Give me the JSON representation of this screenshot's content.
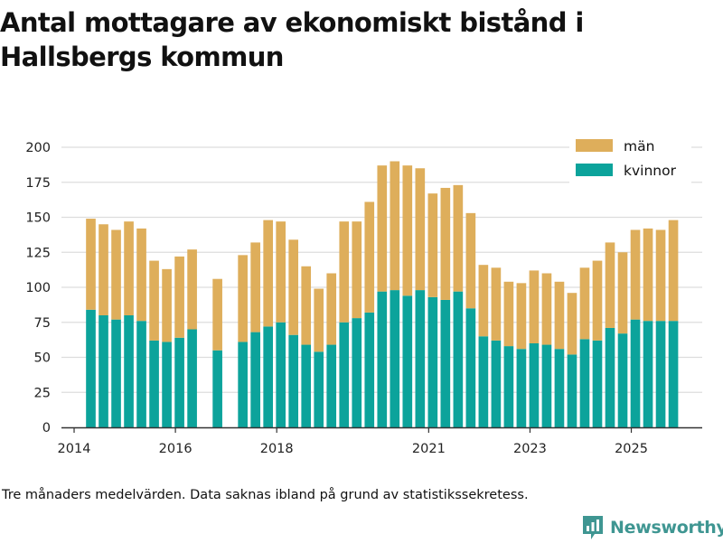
{
  "title": "Antal mottagare av ekonomiskt bistånd i Hallsbergs kommun",
  "footnote": "Tre månaders medelvärden. Data saknas ibland på grund av statistikssekretess.",
  "brand": "Newsworthy",
  "colors": {
    "men": "#deae5b",
    "women": "#0ca39b",
    "grid": "#dddddd",
    "axis": "#333333",
    "brand": "#3f9692"
  },
  "chart_data": {
    "type": "bar",
    "stacked": true,
    "title": "Antal mottagare av ekonomiskt bistånd i Hallsbergs kommun",
    "xlabel": "",
    "ylabel": "",
    "ylim": [
      0,
      200
    ],
    "yticks": [
      0,
      25,
      50,
      75,
      100,
      125,
      150,
      175,
      200
    ],
    "xlim": [
      2013.75,
      2026.4
    ],
    "xticks": [
      {
        "value": 2014.0,
        "label": "2014"
      },
      {
        "value": 2016.0,
        "label": "2016"
      },
      {
        "value": 2018.0,
        "label": "2018"
      },
      {
        "value": 2021.0,
        "label": "2021"
      },
      {
        "value": 2023.0,
        "label": "2023"
      },
      {
        "value": 2025.0,
        "label": "2025"
      }
    ],
    "legend": {
      "position": "top-right",
      "entries": [
        "män",
        "kvinnor"
      ]
    },
    "bar_width_years": 0.19,
    "x": [
      2014.33,
      2014.58,
      2014.83,
      2015.08,
      2015.33,
      2015.58,
      2015.83,
      2016.08,
      2016.33,
      2016.83,
      2017.33,
      2017.58,
      2017.83,
      2018.08,
      2018.33,
      2018.58,
      2018.83,
      2019.08,
      2019.33,
      2019.58,
      2019.83,
      2020.08,
      2020.33,
      2020.58,
      2020.83,
      2021.08,
      2021.33,
      2021.58,
      2021.83,
      2022.08,
      2022.33,
      2022.58,
      2022.83,
      2023.08,
      2023.33,
      2023.58,
      2023.83,
      2024.08,
      2024.33,
      2024.58,
      2024.83,
      2025.08,
      2025.33,
      2025.58,
      2025.83
    ],
    "series": [
      {
        "name": "kvinnor",
        "values": [
          84,
          80,
          77,
          80,
          76,
          62,
          61,
          64,
          70,
          55,
          61,
          68,
          72,
          75,
          66,
          59,
          54,
          59,
          75,
          78,
          82,
          97,
          98,
          94,
          98,
          93,
          91,
          97,
          85,
          65,
          62,
          58,
          56,
          60,
          59,
          56,
          52,
          63,
          62,
          71,
          67,
          77,
          76,
          76,
          76
        ]
      },
      {
        "name": "män",
        "values": [
          65,
          65,
          64,
          67,
          66,
          57,
          52,
          58,
          57,
          51,
          62,
          64,
          76,
          72,
          68,
          56,
          45,
          51,
          72,
          69,
          79,
          90,
          92,
          93,
          87,
          74,
          80,
          76,
          68,
          51,
          52,
          46,
          47,
          52,
          51,
          48,
          44,
          51,
          57,
          61,
          58,
          64,
          66,
          65,
          72
        ]
      }
    ]
  }
}
